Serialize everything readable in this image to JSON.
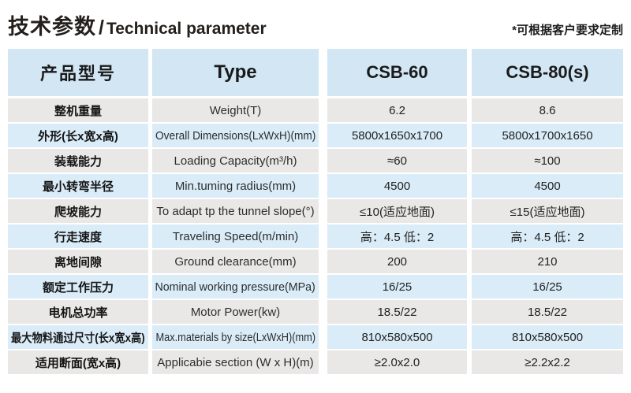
{
  "header": {
    "title_zh": "技术参数",
    "title_divider": "/",
    "title_en": "Technical parameter",
    "note": "*可根据客户要求定制"
  },
  "table": {
    "columns": [
      "产品型号",
      "Type",
      "CSB-60",
      "CSB-80(s)"
    ],
    "rows": [
      {
        "zh": "整机重量",
        "en": "Weight(T)",
        "csb60": "6.2",
        "csb80s": "8.6"
      },
      {
        "zh": "外形(长x宽x高)",
        "en": "Overall Dimensions(LxWxH)(mm)",
        "csb60": "5800x1650x1700",
        "csb80s": "5800x1700x1650"
      },
      {
        "zh": "装载能力",
        "en": "Loading Capacity(m³/h)",
        "csb60": "≈60",
        "csb80s": "≈100"
      },
      {
        "zh": "最小转弯半径",
        "en": "Min.tuming radius(mm)",
        "csb60": "4500",
        "csb80s": "4500"
      },
      {
        "zh": "爬坡能力",
        "en": "To adapt tp the tunnel slope(°)",
        "csb60": "≤10(适应地面)",
        "csb80s": "≤15(适应地面)"
      },
      {
        "zh": "行走速度",
        "en": "Traveling Speed(m/min)",
        "csb60": "高：4.5 低：2",
        "csb80s": "高：4.5 低：2"
      },
      {
        "zh": "离地间隙",
        "en": "Ground clearance(mm)",
        "csb60": "200",
        "csb80s": "210"
      },
      {
        "zh": "额定工作压力",
        "en": "Nominal working pressure(MPa)",
        "csb60": "16/25",
        "csb80s": "16/25"
      },
      {
        "zh": "电机总功率",
        "en": "Motor Power(kw)",
        "csb60": "18.5/22",
        "csb80s": "18.5/22"
      },
      {
        "zh": "最大物料通过尺寸(长x宽x高)",
        "en": "Max.materials by size(LxWxH)(mm)",
        "csb60": "810x580x500",
        "csb80s": "810x580x500"
      },
      {
        "zh": "适用断面(宽x高)",
        "en": "Applicabie section (W x H)(m)",
        "csb60": "≥2.0x2.0",
        "csb80s": "≥2.2x2.2"
      }
    ]
  },
  "colors": {
    "header_bg": "#d2e6f4",
    "row_blue": "#daecf8",
    "row_gray": "#e9e8e6",
    "title_text": "#231f1c"
  }
}
